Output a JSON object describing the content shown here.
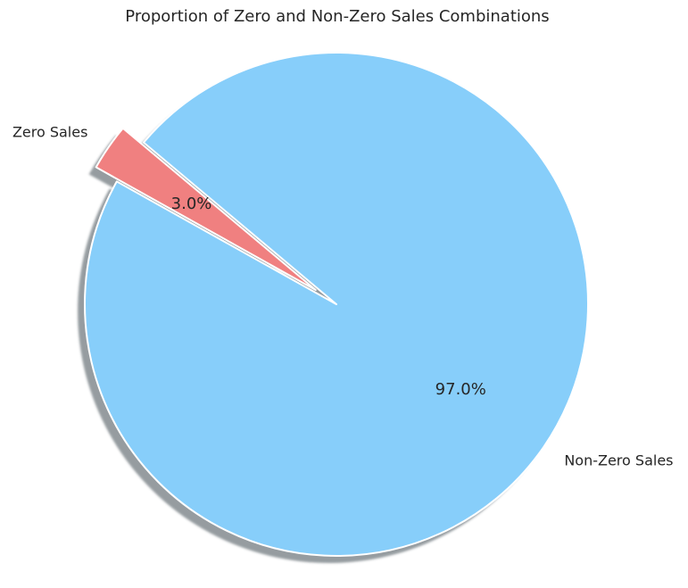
{
  "chart_data": {
    "type": "pie",
    "title": "Proportion of Zero and Non-Zero Sales Combinations",
    "labels": [
      "Zero Sales",
      "Non-Zero Sales"
    ],
    "values": [
      3.0,
      97.0
    ],
    "percent_labels": [
      "3.0%",
      "97.0%"
    ],
    "colors": [
      "#f08080",
      "#87cefa"
    ],
    "explode": [
      0.1,
      0
    ],
    "start_angle": 140,
    "shadow": true
  }
}
